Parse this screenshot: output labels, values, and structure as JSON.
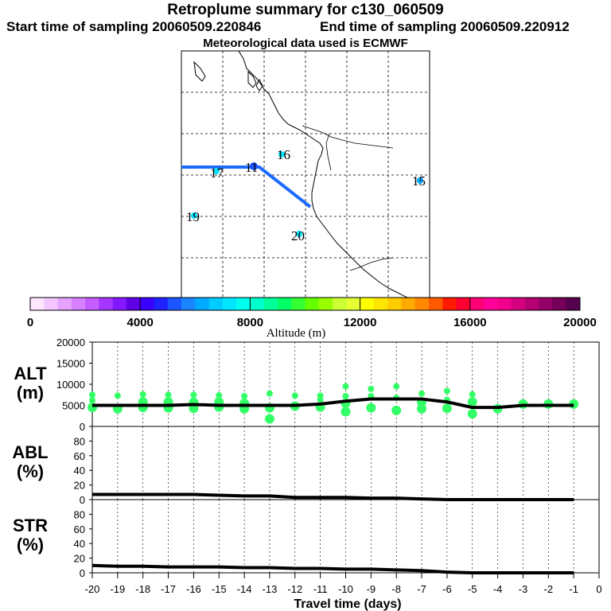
{
  "header": {
    "title": "Retroplume summary for c130_060509",
    "start": "Start time of sampling 20060509.220846",
    "end": "End time of sampling 20060509.220912",
    "met": "Meteorological data used is ECMWF"
  },
  "map": {
    "labels": [
      "16",
      "17",
      "11",
      "15",
      "19",
      "20"
    ]
  },
  "colorbar": {
    "ticks": [
      "0",
      "4000",
      "8000",
      "12000",
      "16000",
      "20000"
    ],
    "label": "Altitude (m)",
    "colors": [
      "#ffe6ff",
      "#f3c6ff",
      "#e6a3ff",
      "#d67fff",
      "#c45cff",
      "#a436ff",
      "#8418ff",
      "#6000e6",
      "#3c00ff",
      "#1f22ff",
      "#1a55ff",
      "#1a85ff",
      "#00aaff",
      "#00ccff",
      "#00e6ff",
      "#00ffee",
      "#00ffcc",
      "#00ff99",
      "#00ff66",
      "#33ff33",
      "#66ff00",
      "#99ff00",
      "#ccff33",
      "#e6ff33",
      "#ffff00",
      "#ffe600",
      "#ffcc00",
      "#ffaa00",
      "#ff8800",
      "#ff5a00",
      "#ff1a00",
      "#ff0033",
      "#ff0077",
      "#ff0099",
      "#f0008c",
      "#d40080",
      "#b40070",
      "#940066",
      "#74005a",
      "#54004e"
    ]
  },
  "chart_data": [
    {
      "type": "line",
      "panel": "ALT",
      "ylabel_line1": "ALT",
      "ylabel_line2": "(m)",
      "ylim": [
        0,
        20000
      ],
      "yticks": [
        "20000",
        "15000",
        "10000",
        "5000",
        "0"
      ],
      "x": [
        -20,
        -19,
        -18,
        -17,
        -16,
        -15,
        -14,
        -13,
        -12,
        -11,
        -10,
        -9,
        -8,
        -7,
        -6,
        -5,
        -4,
        -3,
        -2,
        -1
      ],
      "values": [
        5000,
        5000,
        5000,
        5000,
        5200,
        5000,
        5000,
        5000,
        5000,
        5300,
        6000,
        6500,
        6500,
        6500,
        5800,
        4500,
        4500,
        5000,
        5000,
        5000
      ],
      "scatter": [
        {
          "x": -20,
          "y": 4500
        },
        {
          "x": -20,
          "y": 6200
        },
        {
          "x": -20,
          "y": 7500
        },
        {
          "x": -19,
          "y": 4200
        },
        {
          "x": -19,
          "y": 7300
        },
        {
          "x": -18,
          "y": 4500
        },
        {
          "x": -18,
          "y": 5800
        },
        {
          "x": -18,
          "y": 7600
        },
        {
          "x": -17,
          "y": 4400
        },
        {
          "x": -17,
          "y": 5800
        },
        {
          "x": -17,
          "y": 7500
        },
        {
          "x": -16,
          "y": 4300
        },
        {
          "x": -16,
          "y": 5700
        },
        {
          "x": -16,
          "y": 7500
        },
        {
          "x": -15,
          "y": 4600
        },
        {
          "x": -15,
          "y": 5800
        },
        {
          "x": -15,
          "y": 7400
        },
        {
          "x": -14,
          "y": 4200
        },
        {
          "x": -14,
          "y": 5500
        },
        {
          "x": -14,
          "y": 7200
        },
        {
          "x": -13,
          "y": 4400
        },
        {
          "x": -13,
          "y": 1800
        },
        {
          "x": -13,
          "y": 7800
        },
        {
          "x": -12,
          "y": 4800
        },
        {
          "x": -12,
          "y": 7300
        },
        {
          "x": -11,
          "y": 4600
        },
        {
          "x": -11,
          "y": 6300
        },
        {
          "x": -11,
          "y": 7300
        },
        {
          "x": -10,
          "y": 3500
        },
        {
          "x": -10,
          "y": 5500
        },
        {
          "x": -10,
          "y": 7200
        },
        {
          "x": -10,
          "y": 9500
        },
        {
          "x": -9,
          "y": 4400
        },
        {
          "x": -9,
          "y": 7200
        },
        {
          "x": -9,
          "y": 8900
        },
        {
          "x": -8,
          "y": 3800
        },
        {
          "x": -8,
          "y": 6800
        },
        {
          "x": -8,
          "y": 9500
        },
        {
          "x": -7,
          "y": 5800
        },
        {
          "x": -7,
          "y": 4200
        },
        {
          "x": -7,
          "y": 7800
        },
        {
          "x": -6,
          "y": 4300
        },
        {
          "x": -6,
          "y": 6300
        },
        {
          "x": -6,
          "y": 8400
        },
        {
          "x": -5,
          "y": 3000
        },
        {
          "x": -5,
          "y": 5800
        },
        {
          "x": -5,
          "y": 7600
        },
        {
          "x": -4,
          "y": 4200
        },
        {
          "x": -3,
          "y": 5300
        },
        {
          "x": -2,
          "y": 5300
        },
        {
          "x": -1,
          "y": 5300
        }
      ]
    },
    {
      "type": "line",
      "panel": "ABL",
      "ylabel_line1": "ABL",
      "ylabel_line2": "(%)",
      "ylim": [
        0,
        100
      ],
      "yticks": [
        "80",
        "60",
        "40",
        "20",
        "0"
      ],
      "x": [
        -20,
        -19,
        -18,
        -17,
        -16,
        -15,
        -14,
        -13,
        -12,
        -11,
        -10,
        -9,
        -8,
        -7,
        -6,
        -5,
        -4,
        -3,
        -2,
        -1
      ],
      "values": [
        7,
        7,
        7,
        7,
        7,
        6,
        5,
        5,
        3,
        3,
        3,
        2,
        2,
        1,
        0,
        0,
        0,
        0,
        0,
        0
      ]
    },
    {
      "type": "line",
      "panel": "STR",
      "ylabel_line1": "STR",
      "ylabel_line2": "(%)",
      "ylim": [
        0,
        100
      ],
      "yticks": [
        "80",
        "60",
        "40",
        "20",
        "0"
      ],
      "x": [
        -20,
        -19,
        -18,
        -17,
        -16,
        -15,
        -14,
        -13,
        -12,
        -11,
        -10,
        -9,
        -8,
        -7,
        -6,
        -5,
        -4,
        -3,
        -2,
        -1
      ],
      "values": [
        10,
        9,
        9,
        8,
        8,
        8,
        7,
        7,
        6,
        6,
        5,
        5,
        4,
        3,
        1,
        0,
        0,
        0,
        0,
        0
      ],
      "xlabel": "Travel time (days)",
      "xticks": [
        "-20",
        "-19",
        "-18",
        "-17",
        "-16",
        "-15",
        "-14",
        "-13",
        "-12",
        "-11",
        "-10",
        "-9",
        "-8",
        "-7",
        "-6",
        "-5",
        "-4",
        "-3",
        "-2",
        "-1",
        "0"
      ]
    }
  ]
}
